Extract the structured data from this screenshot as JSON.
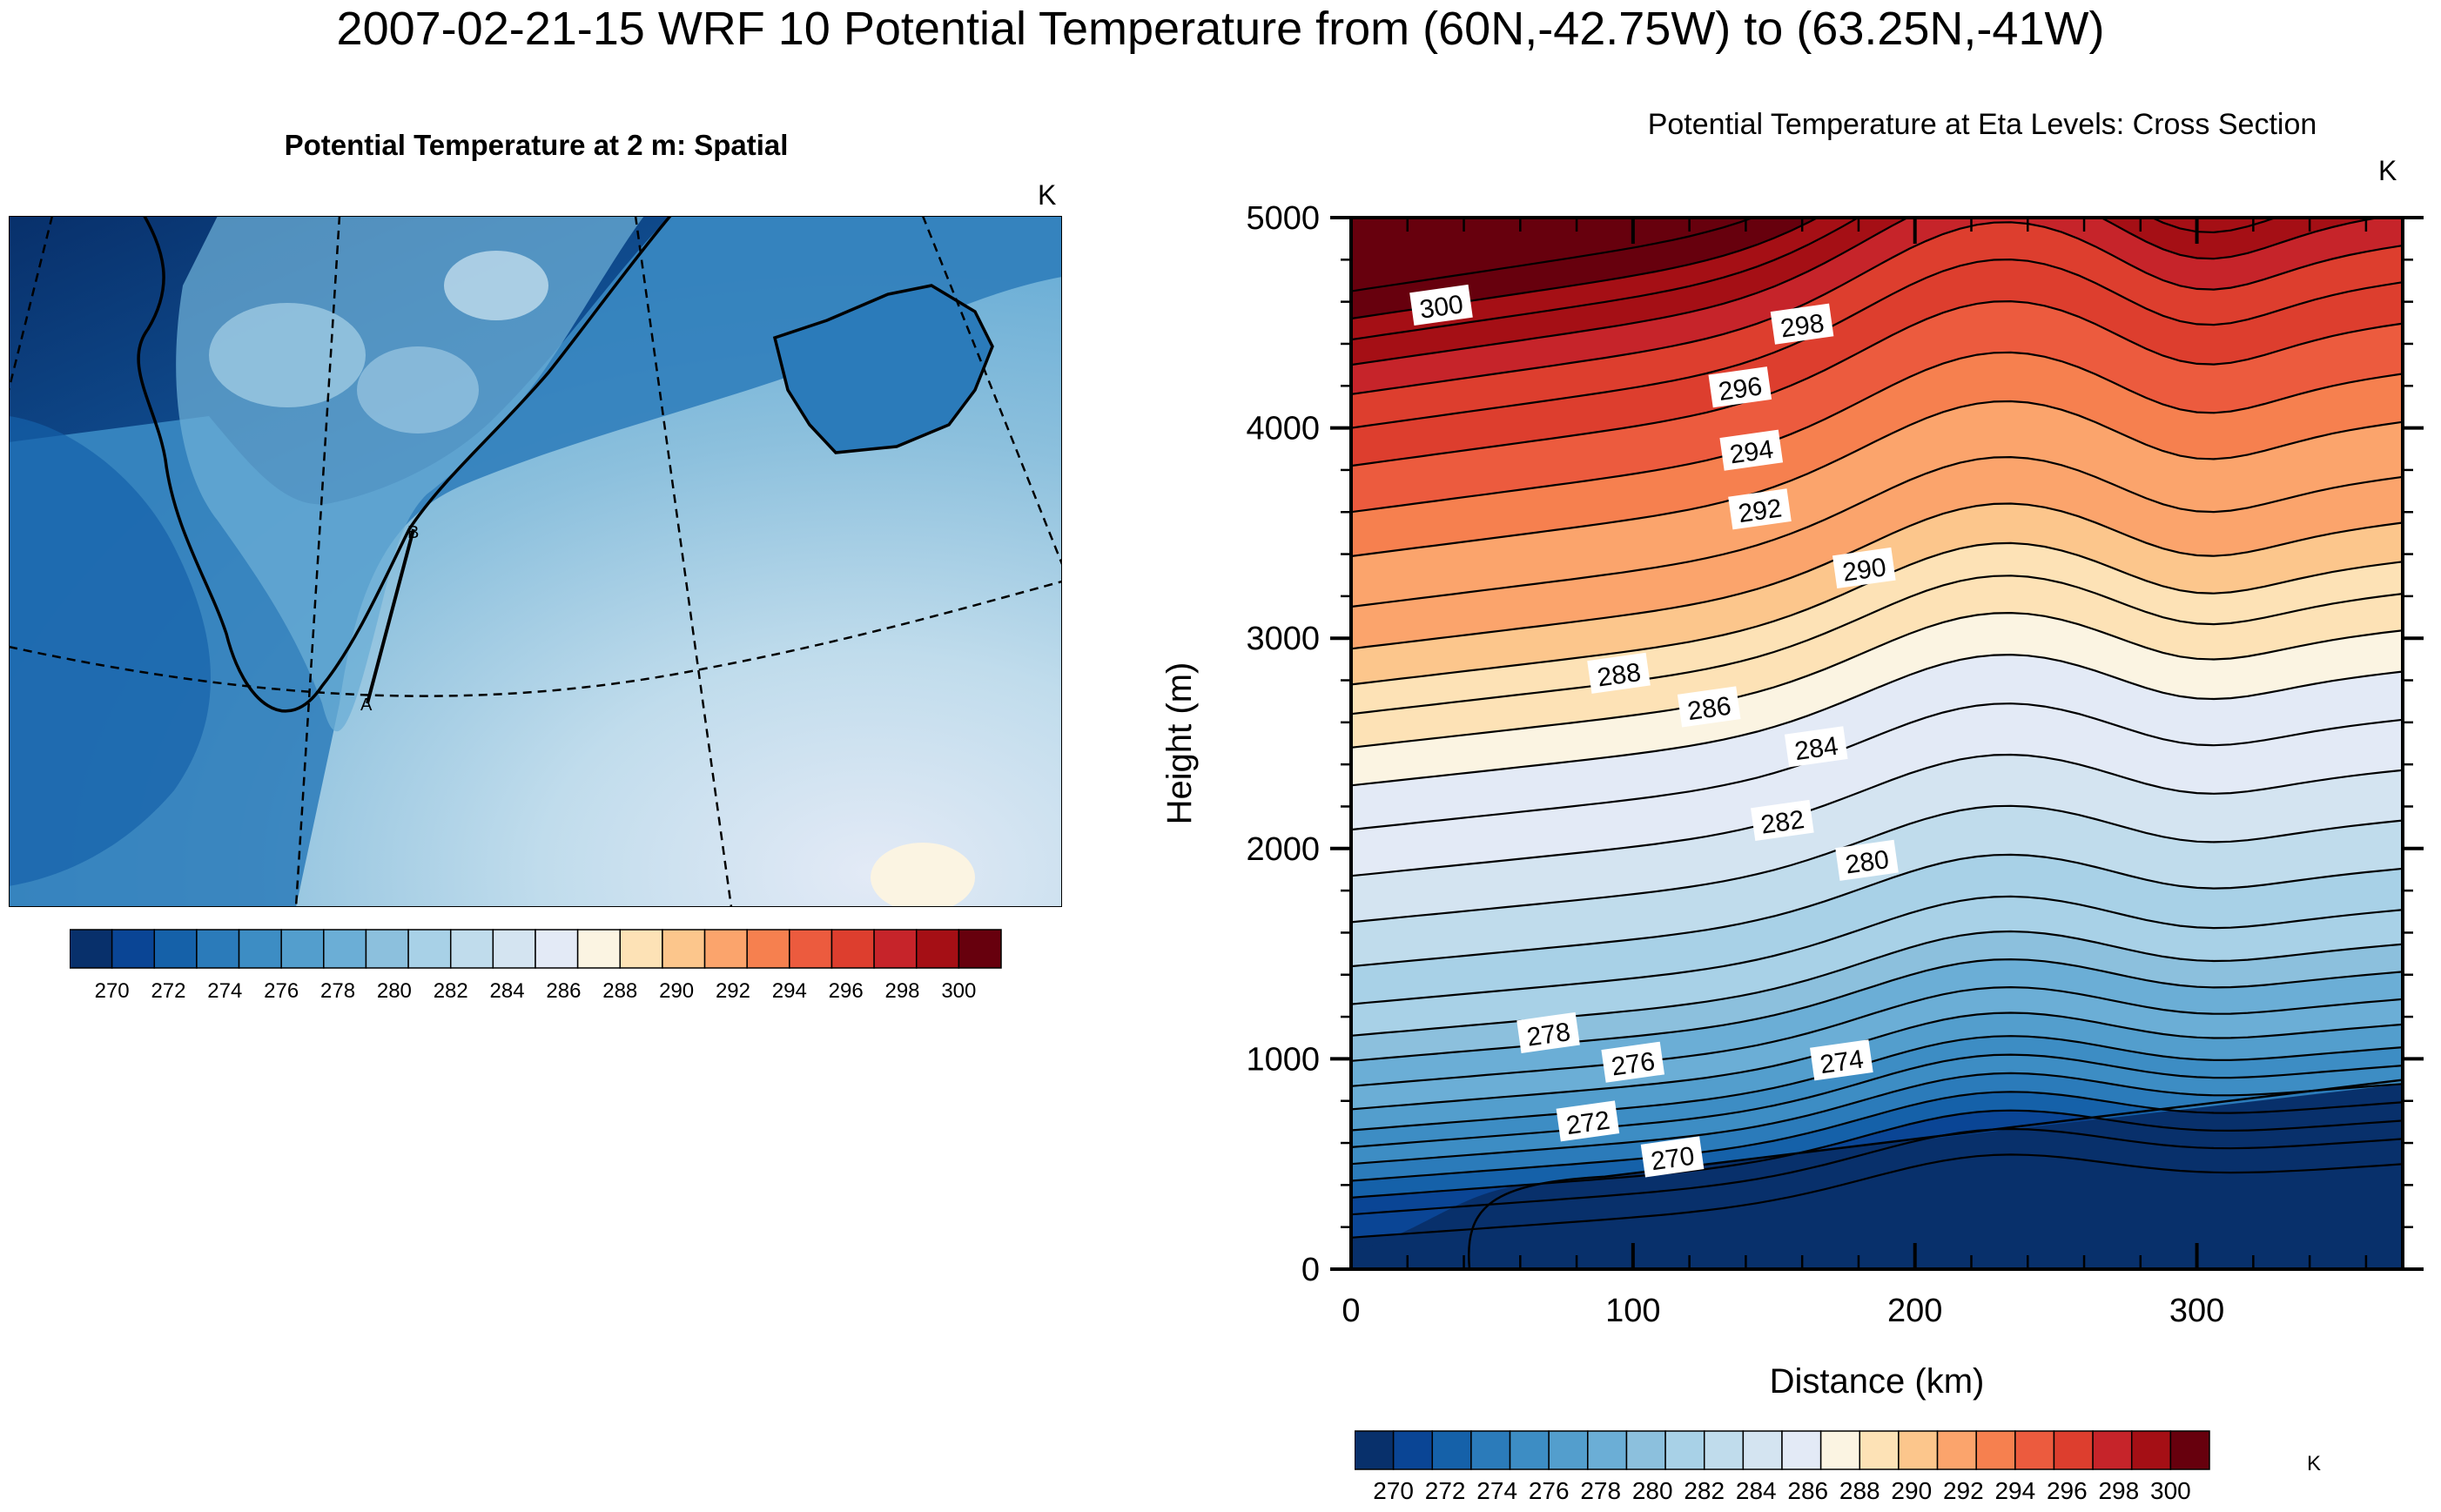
{
  "title": "2007-02-21-15 WRF 10 Potential Temperature from (60N,-42.75W) to (63.25N,-41W)",
  "left_panel": {
    "title": "Potential Temperature at 2 m: Spatial",
    "units": "K",
    "transect_start_label": "A",
    "transect_end_label": "B",
    "colorbar_labels": [
      "270",
      "272",
      "274",
      "276",
      "278",
      "280",
      "282",
      "284",
      "286",
      "288",
      "290",
      "292",
      "294",
      "296",
      "298",
      "300"
    ]
  },
  "right_panel": {
    "title": "Potential Temperature at Eta Levels: Cross Section",
    "units": "K",
    "colorbar_units": "K",
    "colorbar_labels": [
      "270",
      "272",
      "274",
      "276",
      "278",
      "280",
      "282",
      "284",
      "286",
      "288",
      "290",
      "292",
      "294",
      "296",
      "298",
      "300"
    ]
  },
  "palette": [
    "#08306b",
    "#0a4595",
    "#1561a9",
    "#2b7bba",
    "#3d8dc4",
    "#539ecd",
    "#6baed6",
    "#8cc0dd",
    "#a8d1e7",
    "#c0dcec",
    "#d4e4f1",
    "#e3eaf6",
    "#fbf4e2",
    "#fde2b6",
    "#fcc68c",
    "#fba46c",
    "#f6804f",
    "#ec5b3e",
    "#dd3e2e",
    "#c6242a",
    "#a50f15",
    "#67000d"
  ],
  "chart_data": {
    "type": "heatmap",
    "description_type": "contour cross-section",
    "xlabel": "Distance (km)",
    "ylabel": "Height (m)",
    "xlim": [
      0,
      373
    ],
    "ylim": [
      0,
      5000
    ],
    "xticks": [
      0,
      100,
      200,
      300
    ],
    "yticks": [
      0,
      1000,
      2000,
      3000,
      4000,
      5000
    ],
    "contour_interval": 1,
    "contour_labels": [
      {
        "value": "300",
        "x": 32,
        "y": 4580
      },
      {
        "value": "298",
        "x": 160,
        "y": 4490
      },
      {
        "value": "296",
        "x": 138,
        "y": 4190
      },
      {
        "value": "294",
        "x": 142,
        "y": 3890
      },
      {
        "value": "292",
        "x": 145,
        "y": 3610
      },
      {
        "value": "290",
        "x": 182,
        "y": 3330
      },
      {
        "value": "288",
        "x": 95,
        "y": 2830
      },
      {
        "value": "286",
        "x": 127,
        "y": 2670
      },
      {
        "value": "284",
        "x": 165,
        "y": 2480
      },
      {
        "value": "282",
        "x": 153,
        "y": 2130
      },
      {
        "value": "280",
        "x": 183,
        "y": 1940
      },
      {
        "value": "278",
        "x": 70,
        "y": 1120
      },
      {
        "value": "276",
        "x": 100,
        "y": 980
      },
      {
        "value": "274",
        "x": 174,
        "y": 990
      },
      {
        "value": "272",
        "x": 84,
        "y": 700
      },
      {
        "value": "270",
        "x": 114,
        "y": 530
      }
    ],
    "levels": [
      270,
      271,
      272,
      273,
      274,
      275,
      276,
      277,
      278,
      279,
      280,
      281,
      282,
      283,
      284,
      285,
      286,
      287,
      288,
      289,
      290,
      291,
      292,
      293,
      294,
      295,
      296,
      297,
      298,
      299,
      300,
      301
    ],
    "level_heights_at_x0": [
      150,
      260,
      340,
      420,
      500,
      580,
      660,
      760,
      870,
      990,
      1110,
      1260,
      1440,
      1650,
      1870,
      2090,
      2300,
      2480,
      2640,
      2780,
      2950,
      3150,
      3390,
      3600,
      3820,
      4000,
      4160,
      4300,
      4420,
      4520,
      4650,
      5000
    ]
  }
}
